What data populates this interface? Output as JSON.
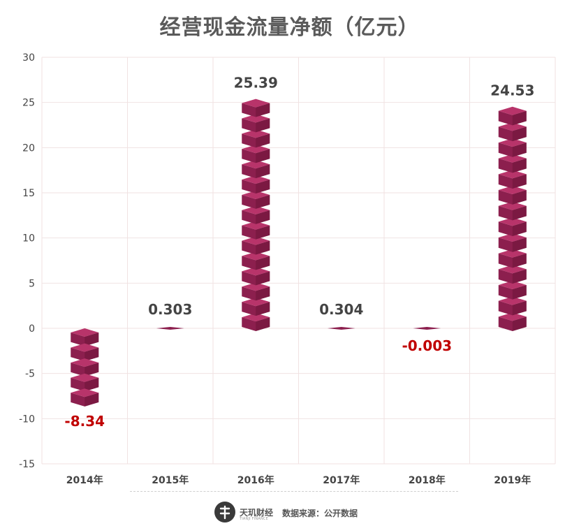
{
  "chart_data": {
    "type": "bar",
    "title": "经营现金流量净额（亿元）",
    "categories": [
      "2014年",
      "2015年",
      "2016年",
      "2017年",
      "2018年",
      "2019年"
    ],
    "values": [
      -8.34,
      0.303,
      25.39,
      0.304,
      -0.003,
      24.53
    ],
    "value_labels": [
      "-8.34",
      "0.303",
      "25.39",
      "0.304",
      "-0.003",
      "24.53"
    ],
    "xlabel": "",
    "ylabel": "",
    "ylim": [
      -15,
      30
    ],
    "yticks": [
      30,
      25,
      20,
      15,
      10,
      5,
      0,
      -5,
      -10,
      -15
    ],
    "grid": true,
    "legend": "none",
    "colors": {
      "bar_top": "#b8346a",
      "bar_front": "#8c1f4e",
      "bar_side": "#6d1439",
      "positive_label": "#444444",
      "negative_label": "#c00000",
      "grid": "#f0e2e2",
      "axis_text": "#444444"
    }
  },
  "footer": {
    "logo_icon": "tianji-logo-icon",
    "brand": "天玑财经",
    "brand_sub": "TIANJI FINANCE",
    "source": "数据来源：公开数据"
  }
}
